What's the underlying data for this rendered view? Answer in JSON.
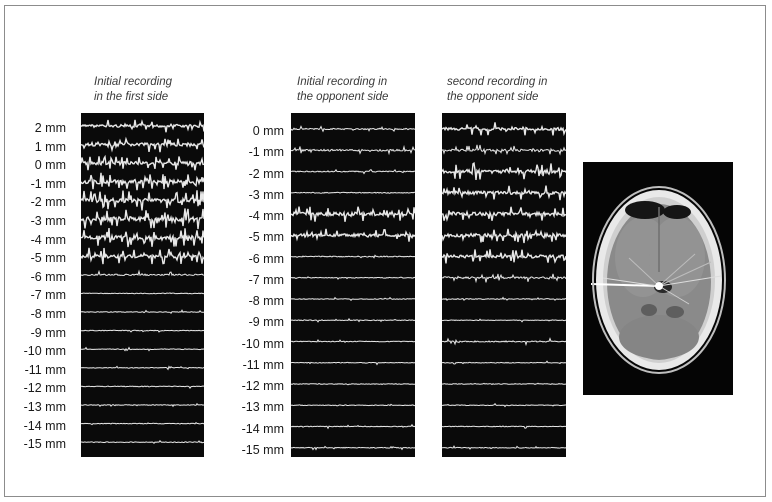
{
  "panels": [
    {
      "title_line1": "Initial recording",
      "title_line2": "in the first side",
      "depths": [
        "2 mm",
        "1 mm",
        "0 mm",
        "-1 mm",
        "-2 mm",
        "-3 mm",
        "-4 mm",
        "-5 mm",
        "-6 mm",
        "-7 mm",
        "-8 mm",
        "-9 mm",
        "-10 mm",
        "-11 mm",
        "-12 mm",
        "-13 mm",
        "-14 mm",
        "-15 mm"
      ]
    },
    {
      "title_line1": "Initial recording in",
      "title_line2": "the opponent side",
      "depths": [
        "0 mm",
        "-1 mm",
        "-2 mm",
        "-3 mm",
        "-4 mm",
        "-5 mm",
        "-6 mm",
        "-7 mm",
        "-8 mm",
        "-9 mm",
        "-10 mm",
        "-11 mm",
        "-12 mm",
        "-13 mm",
        "-14 mm",
        "-15 mm"
      ]
    },
    {
      "title_line1": "second recording in",
      "title_line2": "the opponent side",
      "depths": []
    }
  ],
  "colors": {
    "trace": "#e8e8e8",
    "panel_bg": "#0a0a0a",
    "frame": "#8c8c8c"
  },
  "ct_scan": {
    "icon": "brain-ct-scan-image"
  }
}
